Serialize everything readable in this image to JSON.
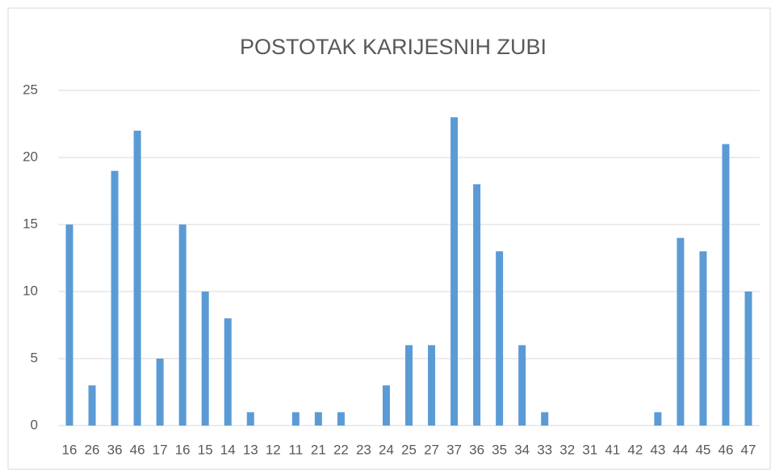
{
  "chart_data": {
    "type": "bar",
    "title": "POSTOTAK KARIJESNIH ZUBI",
    "categories": [
      "16",
      "26",
      "36",
      "46",
      "17",
      "16",
      "15",
      "14",
      "13",
      "12",
      "11",
      "21",
      "22",
      "23",
      "24",
      "25",
      "27",
      "37",
      "36",
      "35",
      "34",
      "33",
      "32",
      "31",
      "41",
      "42",
      "43",
      "44",
      "45",
      "46",
      "47"
    ],
    "values": [
      15,
      3,
      19,
      22,
      5,
      15,
      10,
      8,
      1,
      0,
      1,
      1,
      1,
      0,
      3,
      6,
      6,
      23,
      18,
      13,
      6,
      1,
      0,
      0,
      0,
      0,
      1,
      14,
      13,
      21,
      10
    ],
    "color": "#5b9bd5",
    "ylim": [
      0,
      25
    ],
    "yticks": [
      0,
      5,
      10,
      15,
      20,
      25
    ],
    "grid": true
  }
}
